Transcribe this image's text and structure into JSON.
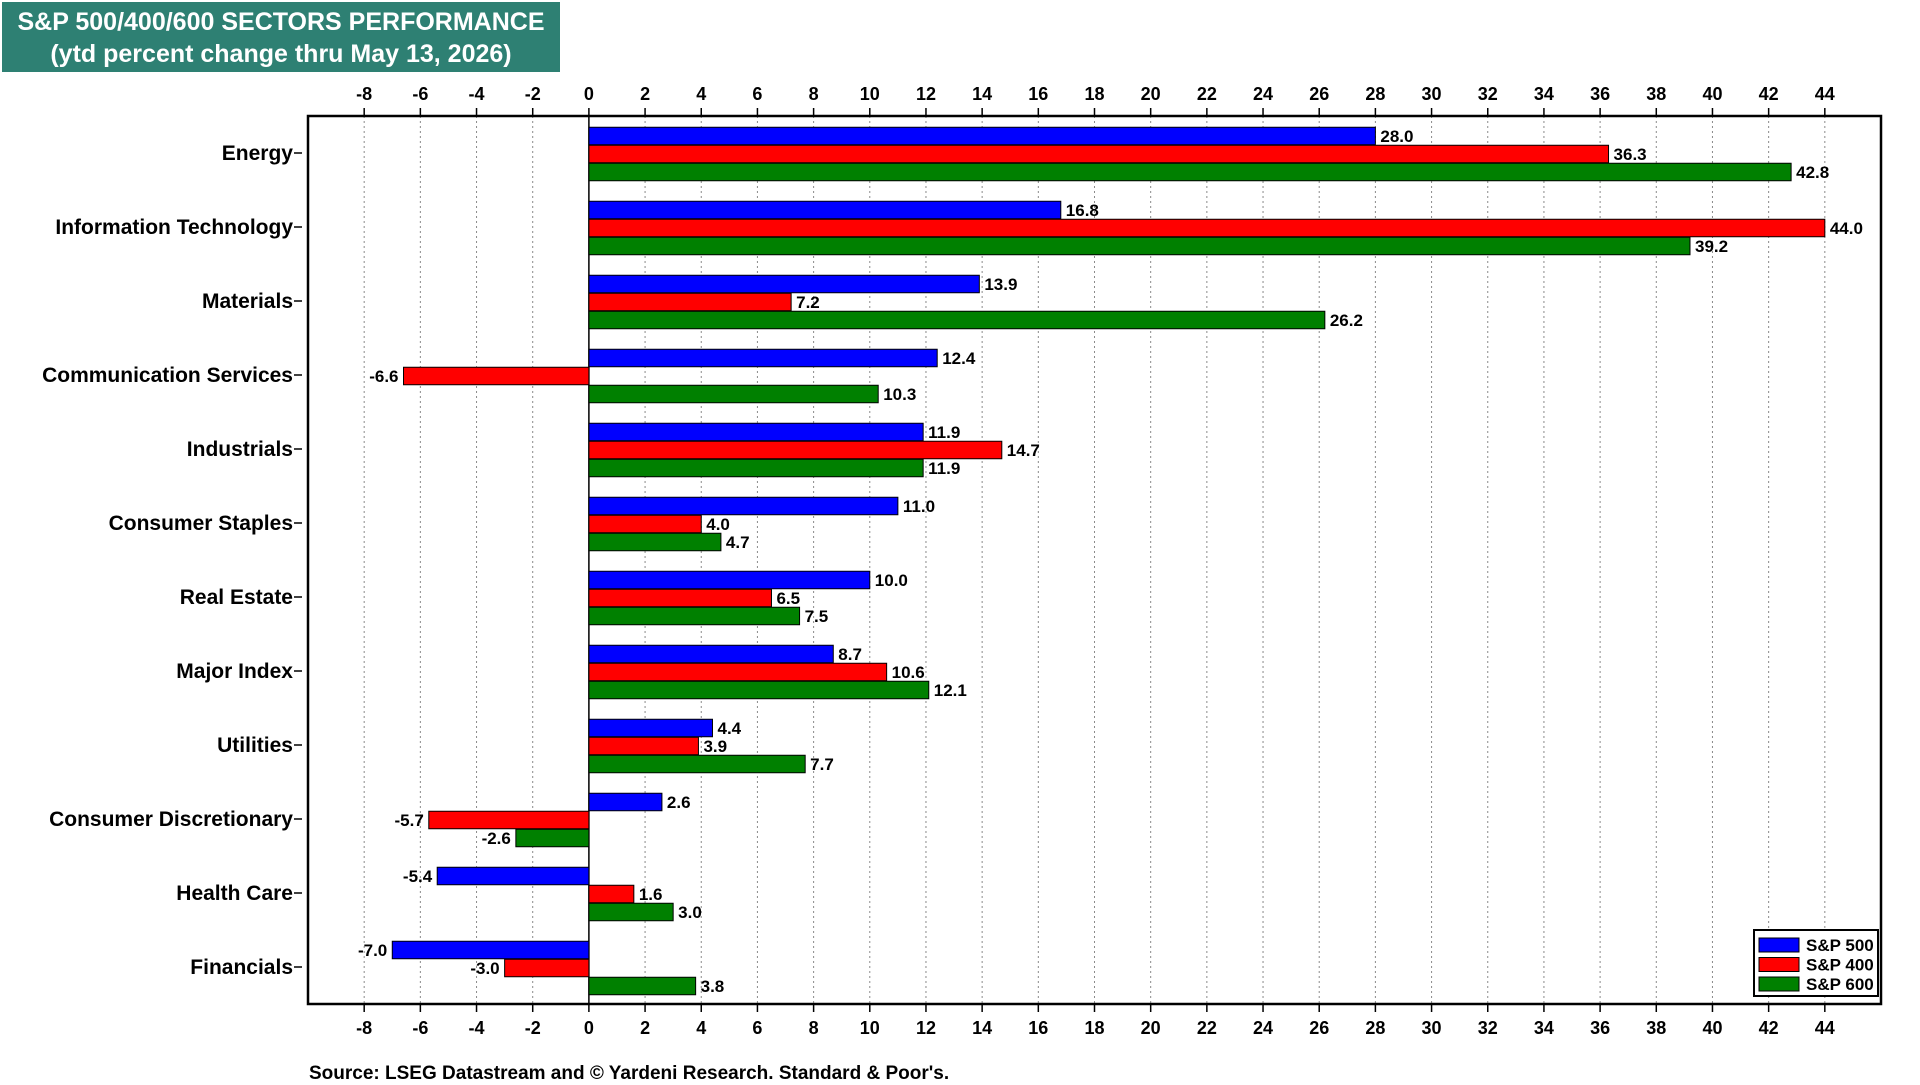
{
  "chart_data": {
    "type": "bar",
    "orientation": "horizontal",
    "title": "S&P 500/400/600 SECTORS PERFORMANCE",
    "subtitle": "(ytd percent change thru May 13, 2026)",
    "categories": [
      "Energy",
      "Information Technology",
      "Materials",
      "Communication Services",
      "Industrials",
      "Consumer Staples",
      "Real Estate",
      "Major Index",
      "Utilities",
      "Consumer Discretionary",
      "Health Care",
      "Financials"
    ],
    "series": [
      {
        "name": "S&P 500",
        "color": "#0000ff",
        "values": [
          28.0,
          16.8,
          13.9,
          12.4,
          11.9,
          11.0,
          10.0,
          8.7,
          4.4,
          2.6,
          -5.4,
          -7.0
        ]
      },
      {
        "name": "S&P 400",
        "color": "#ff0000",
        "values": [
          36.3,
          44.0,
          7.2,
          -6.6,
          14.7,
          4.0,
          6.5,
          10.6,
          3.9,
          -5.7,
          1.6,
          -3.0
        ]
      },
      {
        "name": "S&P 600",
        "color": "#008000",
        "values": [
          42.8,
          39.2,
          26.2,
          10.3,
          11.9,
          4.7,
          7.5,
          12.1,
          7.7,
          -2.6,
          3.0,
          3.8
        ]
      }
    ],
    "xlim": [
      -10,
      46
    ],
    "xticks": [
      -8,
      -6,
      -4,
      -2,
      0,
      2,
      4,
      6,
      8,
      10,
      12,
      14,
      16,
      18,
      20,
      22,
      24,
      26,
      28,
      30,
      32,
      34,
      36,
      38,
      40,
      42,
      44
    ],
    "grid": "vertical dotted",
    "legend": "bottom-right",
    "xlabel": "",
    "ylabel": ""
  },
  "source": "Source: LSEG Datastream and © Yardeni Research. Standard & Poor's."
}
